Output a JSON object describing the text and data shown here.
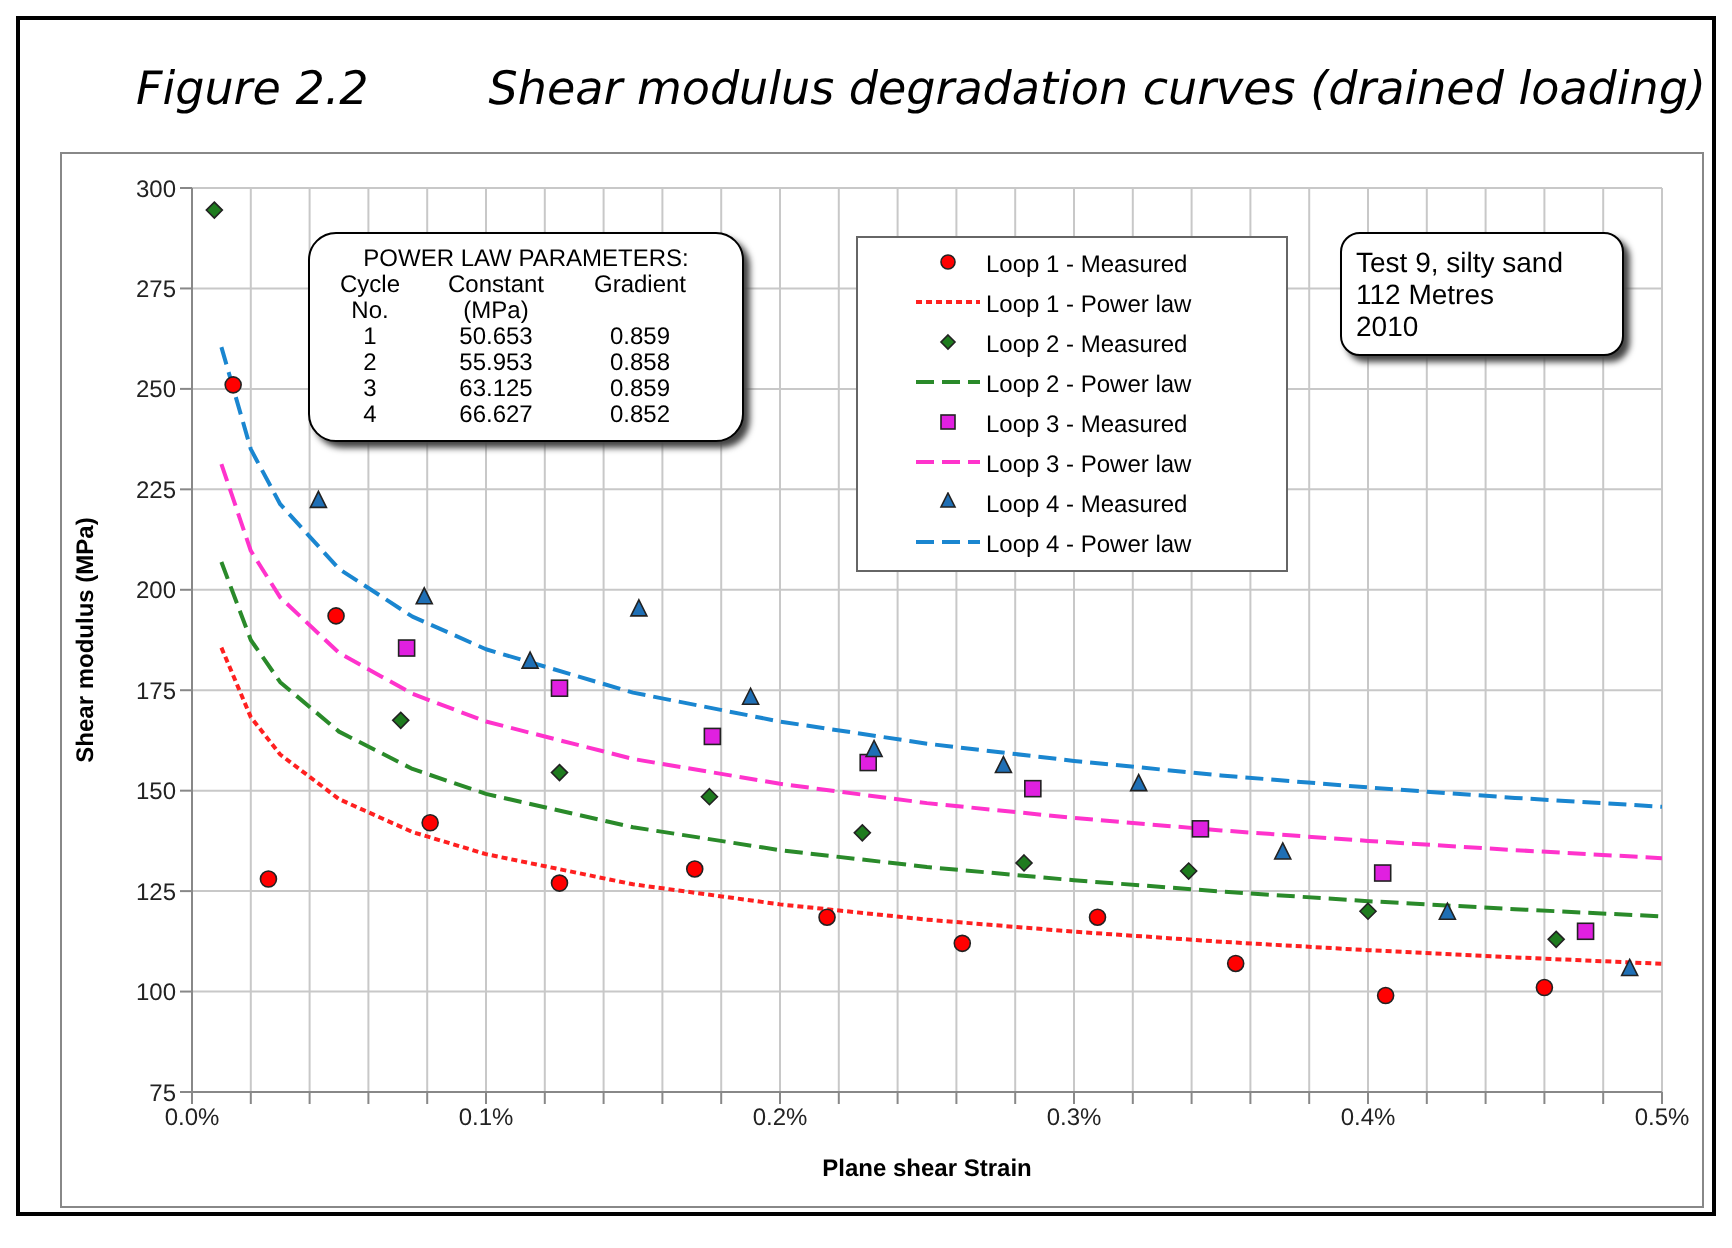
{
  "chart_data": {
    "type": "scatter",
    "title": "Figure 2.2",
    "subtitle": "Shear modulus degradation curves (drained loading)",
    "xlabel": "Plane shear Strain",
    "ylabel": "Shear modulus (MPa)",
    "xlim": [
      0,
      0.5
    ],
    "ylim": [
      75,
      300
    ],
    "xticks": [
      {
        "value": 0,
        "label": "0.0%"
      },
      {
        "value": 0.02,
        "label": null
      },
      {
        "value": 0.04,
        "label": null
      },
      {
        "value": 0.06,
        "label": null
      },
      {
        "value": 0.08,
        "label": null
      },
      {
        "value": 0.1,
        "label": "0.1%"
      },
      {
        "value": 0.12,
        "label": null
      },
      {
        "value": 0.14,
        "label": null
      },
      {
        "value": 0.16,
        "label": null
      },
      {
        "value": 0.18,
        "label": null
      },
      {
        "value": 0.2,
        "label": "0.2%"
      },
      {
        "value": 0.22,
        "label": null
      },
      {
        "value": 0.24,
        "label": null
      },
      {
        "value": 0.26,
        "label": null
      },
      {
        "value": 0.28,
        "label": null
      },
      {
        "value": 0.3,
        "label": "0.3%"
      },
      {
        "value": 0.32,
        "label": null
      },
      {
        "value": 0.34,
        "label": null
      },
      {
        "value": 0.36,
        "label": null
      },
      {
        "value": 0.38,
        "label": null
      },
      {
        "value": 0.4,
        "label": "0.4%"
      },
      {
        "value": 0.42,
        "label": null
      },
      {
        "value": 0.44,
        "label": null
      },
      {
        "value": 0.46,
        "label": null
      },
      {
        "value": 0.48,
        "label": null
      },
      {
        "value": 0.5,
        "label": "0.5%"
      }
    ],
    "yticks": [
      75,
      100,
      125,
      150,
      175,
      200,
      225,
      250,
      275,
      300
    ],
    "grid": true,
    "legend": "top",
    "annotations": [
      "POWER LAW PARAMETERS:\nCycle\tConstant\tGradient\nNo.\t(MPa)\t\n1\t50.653\t0.859\n2\t55.953\t0.858\n3\t63.125\t0.859\n4\t66.627\t0.852",
      "Test 9, silty sand\n112 Metres\n2010"
    ],
    "series": [
      {
        "name": "Loop 1 - Measured",
        "type": "scatter",
        "marker": "circle",
        "color": "#ff0000",
        "x": [
          0.014,
          0.026,
          0.049,
          0.081,
          0.125,
          0.171,
          0.216,
          0.262,
          0.308,
          0.355,
          0.406,
          0.46
        ],
        "values": [
          251,
          128,
          193.5,
          142,
          127,
          130.5,
          118.5,
          112,
          118.5,
          107,
          99,
          101
        ]
      },
      {
        "name": "Loop 1 - Power law",
        "type": "line",
        "marker": "none",
        "line_style": "dotted",
        "color": "#ff2020",
        "x": [
          0.01,
          0.02,
          0.03,
          0.05,
          0.075,
          0.1,
          0.15,
          0.2,
          0.25,
          0.3,
          0.35,
          0.4,
          0.45,
          0.5
        ],
        "values": [
          185.6,
          168.3,
          159,
          147.9,
          139.7,
          134.2,
          126.7,
          121.7,
          117.9,
          114.9,
          112.4,
          110.3,
          108.5,
          106.9
        ]
      },
      {
        "name": "Loop 2 - Measured",
        "type": "scatter",
        "marker": "diamond",
        "color": "#1e7b1e",
        "x": [
          0.0076,
          0.071,
          0.125,
          0.176,
          0.228,
          0.283,
          0.339,
          0.4,
          0.464
        ],
        "values": [
          294.5,
          167.5,
          154.5,
          148.5,
          139.5,
          132,
          130,
          120,
          113
        ]
      },
      {
        "name": "Loop 2 - Power law",
        "type": "line",
        "marker": "none",
        "line_style": "dashed",
        "color": "#2a8a2a",
        "x": [
          0.01,
          0.02,
          0.03,
          0.05,
          0.075,
          0.1,
          0.15,
          0.2,
          0.25,
          0.3,
          0.35,
          0.4,
          0.45,
          0.5
        ],
        "values": [
          206.9,
          187.5,
          177,
          164.7,
          155.4,
          149.2,
          140.9,
          135.2,
          131,
          127.7,
          124.9,
          122.5,
          120.5,
          118.7
        ]
      },
      {
        "name": "Loop 3 - Measured",
        "type": "scatter",
        "marker": "square",
        "color": "#e020e0",
        "x": [
          0.073,
          0.125,
          0.177,
          0.23,
          0.286,
          0.343,
          0.405,
          0.474
        ],
        "values": [
          185.5,
          175.5,
          163.5,
          157,
          150.5,
          140.5,
          129.5,
          115
        ]
      },
      {
        "name": "Loop 3 - Power law",
        "type": "line",
        "marker": "none",
        "line_style": "dashed",
        "color": "#ff33cc",
        "x": [
          0.01,
          0.02,
          0.03,
          0.05,
          0.075,
          0.1,
          0.15,
          0.2,
          0.25,
          0.3,
          0.35,
          0.4,
          0.45,
          0.5
        ],
        "values": [
          231.3,
          209.7,
          198.1,
          184.3,
          174.1,
          167.2,
          157.9,
          151.7,
          146.9,
          143.2,
          140.1,
          137.5,
          135.2,
          133.2
        ]
      },
      {
        "name": "Loop 4 - Measured",
        "type": "scatter",
        "marker": "triangle",
        "color": "#1f6fb5",
        "x": [
          0.043,
          0.079,
          0.115,
          0.152,
          0.19,
          0.232,
          0.276,
          0.322,
          0.371,
          0.427,
          0.489
        ],
        "values": [
          222,
          198,
          182,
          195,
          173,
          160,
          156,
          151.5,
          134.5,
          119.5,
          105.5
        ]
      },
      {
        "name": "Loop 4 - Power law",
        "type": "line",
        "marker": "none",
        "line_style": "dashed",
        "color": "#1a86d0",
        "x": [
          0.01,
          0.02,
          0.03,
          0.05,
          0.075,
          0.1,
          0.15,
          0.2,
          0.25,
          0.3,
          0.35,
          0.4,
          0.45,
          0.5
        ],
        "values": [
          260.4,
          235,
          221.3,
          205.2,
          193.3,
          185.2,
          174.4,
          167.2,
          161.7,
          157.4,
          153.8,
          150.8,
          148.2,
          146
        ]
      }
    ]
  }
}
